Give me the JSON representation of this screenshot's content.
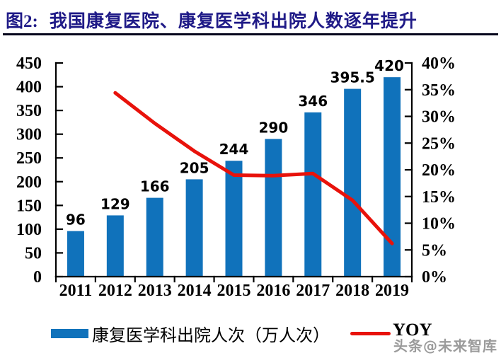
{
  "header": {
    "prefix": "图2:",
    "title": "我国康复医院、康复医学科出院人数逐年提升"
  },
  "chart_data": {
    "type": "bar+line",
    "title": "我国康复医院、康复医学科出院人数逐年提升",
    "categories": [
      "2011",
      "2012",
      "2013",
      "2014",
      "2015",
      "2016",
      "2017",
      "2018",
      "2019"
    ],
    "series": [
      {
        "name": "康复医学科出院人次（万人次）",
        "type": "bar",
        "axis": "left",
        "values": [
          96,
          129,
          166,
          205,
          244,
          290,
          346,
          395.5,
          420
        ]
      },
      {
        "name": "YOY",
        "type": "line",
        "axis": "right",
        "unit": "%",
        "values": [
          null,
          34.4,
          28.7,
          23.5,
          19,
          18.9,
          19.3,
          14.3,
          6.2
        ]
      }
    ],
    "left_axis": {
      "min": 0,
      "max": 450,
      "step": 50,
      "tick_labels": [
        "0",
        "50",
        "100",
        "150",
        "200",
        "250",
        "300",
        "350",
        "400",
        "450"
      ]
    },
    "right_axis": {
      "min": 0,
      "max": 40,
      "step": 5,
      "tick_labels": [
        "0%",
        "5%",
        "10%",
        "15%",
        "20%",
        "25%",
        "30%",
        "35%",
        "40%"
      ]
    },
    "grid": false,
    "legend_position": "bottom",
    "bar_data_labels_visible": true
  },
  "legend": {
    "bar_label": "康复医学科出院人次（万人次）",
    "line_label": "YOY"
  },
  "watermark": "头条@未来智库",
  "colors": {
    "title": "#1F1A87",
    "divider": "#06061C",
    "bar": "#1072BB",
    "line": "#E8120B",
    "axis": "#000000",
    "text": "#000000",
    "watermark": "#9B9B9B"
  }
}
